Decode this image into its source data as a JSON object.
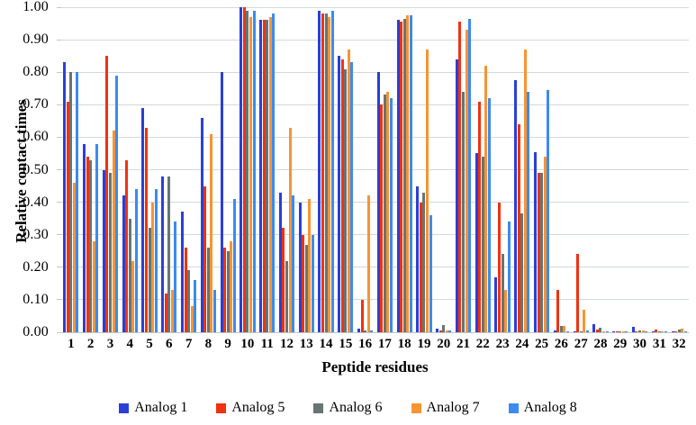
{
  "chart_data": {
    "type": "bar",
    "title": "",
    "xlabel": "Peptide residues",
    "ylabel": "Relative contact times",
    "ylim": [
      0,
      1.0
    ],
    "y_tick_step": 0.1,
    "y_tick_labels": [
      "0.00",
      "0.10",
      "0.20",
      "0.30",
      "0.40",
      "0.50",
      "0.60",
      "0.70",
      "0.80",
      "0.90",
      "1.00"
    ],
    "grid": true,
    "legend_position": "bottom",
    "categories": [
      "1",
      "2",
      "3",
      "4",
      "5",
      "6",
      "7",
      "8",
      "9",
      "10",
      "11",
      "12",
      "13",
      "14",
      "15",
      "16",
      "17",
      "18",
      "19",
      "20",
      "21",
      "22",
      "23",
      "24",
      "25",
      "26",
      "27",
      "28",
      "29",
      "30",
      "31",
      "32"
    ],
    "series": [
      {
        "name": "Analog 1",
        "color": "#2b3fd4",
        "values": [
          0.83,
          0.58,
          0.5,
          0.42,
          0.69,
          0.48,
          0.37,
          0.66,
          0.8,
          1.0,
          0.96,
          0.43,
          0.4,
          0.99,
          0.85,
          0.01,
          0.8,
          0.96,
          0.45,
          0.012,
          0.84,
          0.55,
          0.17,
          0.775,
          0.555,
          0.005,
          0.004,
          0.025,
          0.004,
          0.018,
          0.003,
          0.003
        ]
      },
      {
        "name": "Analog 5",
        "color": "#ee3311",
        "values": [
          0.71,
          0.54,
          0.85,
          0.53,
          0.63,
          0.12,
          0.26,
          0.45,
          0.26,
          1.0,
          0.96,
          0.32,
          0.3,
          0.98,
          0.84,
          0.1,
          0.7,
          0.955,
          0.4,
          0.005,
          0.955,
          0.71,
          0.4,
          0.64,
          0.49,
          0.13,
          0.24,
          0.007,
          0.003,
          0.004,
          0.008,
          0.004
        ]
      },
      {
        "name": "Analog 6",
        "color": "#677574",
        "values": [
          0.8,
          0.53,
          0.49,
          0.35,
          0.32,
          0.48,
          0.19,
          0.26,
          0.25,
          0.99,
          0.96,
          0.22,
          0.27,
          0.98,
          0.81,
          0.005,
          0.73,
          0.965,
          0.43,
          0.022,
          0.74,
          0.54,
          0.24,
          0.365,
          0.49,
          0.02,
          0.003,
          0.015,
          0.003,
          0.005,
          0.003,
          0.009
        ]
      },
      {
        "name": "Analog 7",
        "color": "#f79433",
        "values": [
          0.46,
          0.28,
          0.62,
          0.22,
          0.4,
          0.13,
          0.08,
          0.61,
          0.28,
          0.97,
          0.97,
          0.63,
          0.41,
          0.97,
          0.87,
          0.42,
          0.74,
          0.975,
          0.87,
          0.005,
          0.93,
          0.82,
          0.13,
          0.87,
          0.54,
          0.02,
          0.07,
          0.004,
          0.003,
          0.006,
          0.004,
          0.01
        ]
      },
      {
        "name": "Analog 8",
        "color": "#3b8bf0",
        "values": [
          0.8,
          0.58,
          0.79,
          0.44,
          0.44,
          0.34,
          0.16,
          0.13,
          0.41,
          0.99,
          0.98,
          0.42,
          0.3,
          0.99,
          0.83,
          0.005,
          0.72,
          0.975,
          0.36,
          0.005,
          0.965,
          0.72,
          0.34,
          0.74,
          0.745,
          0.003,
          0.005,
          0.004,
          0.003,
          0.003,
          0.002,
          0.004
        ]
      }
    ]
  },
  "colors": {
    "gridline": "#d2d8d8",
    "baseline": "#bfc6c6"
  }
}
